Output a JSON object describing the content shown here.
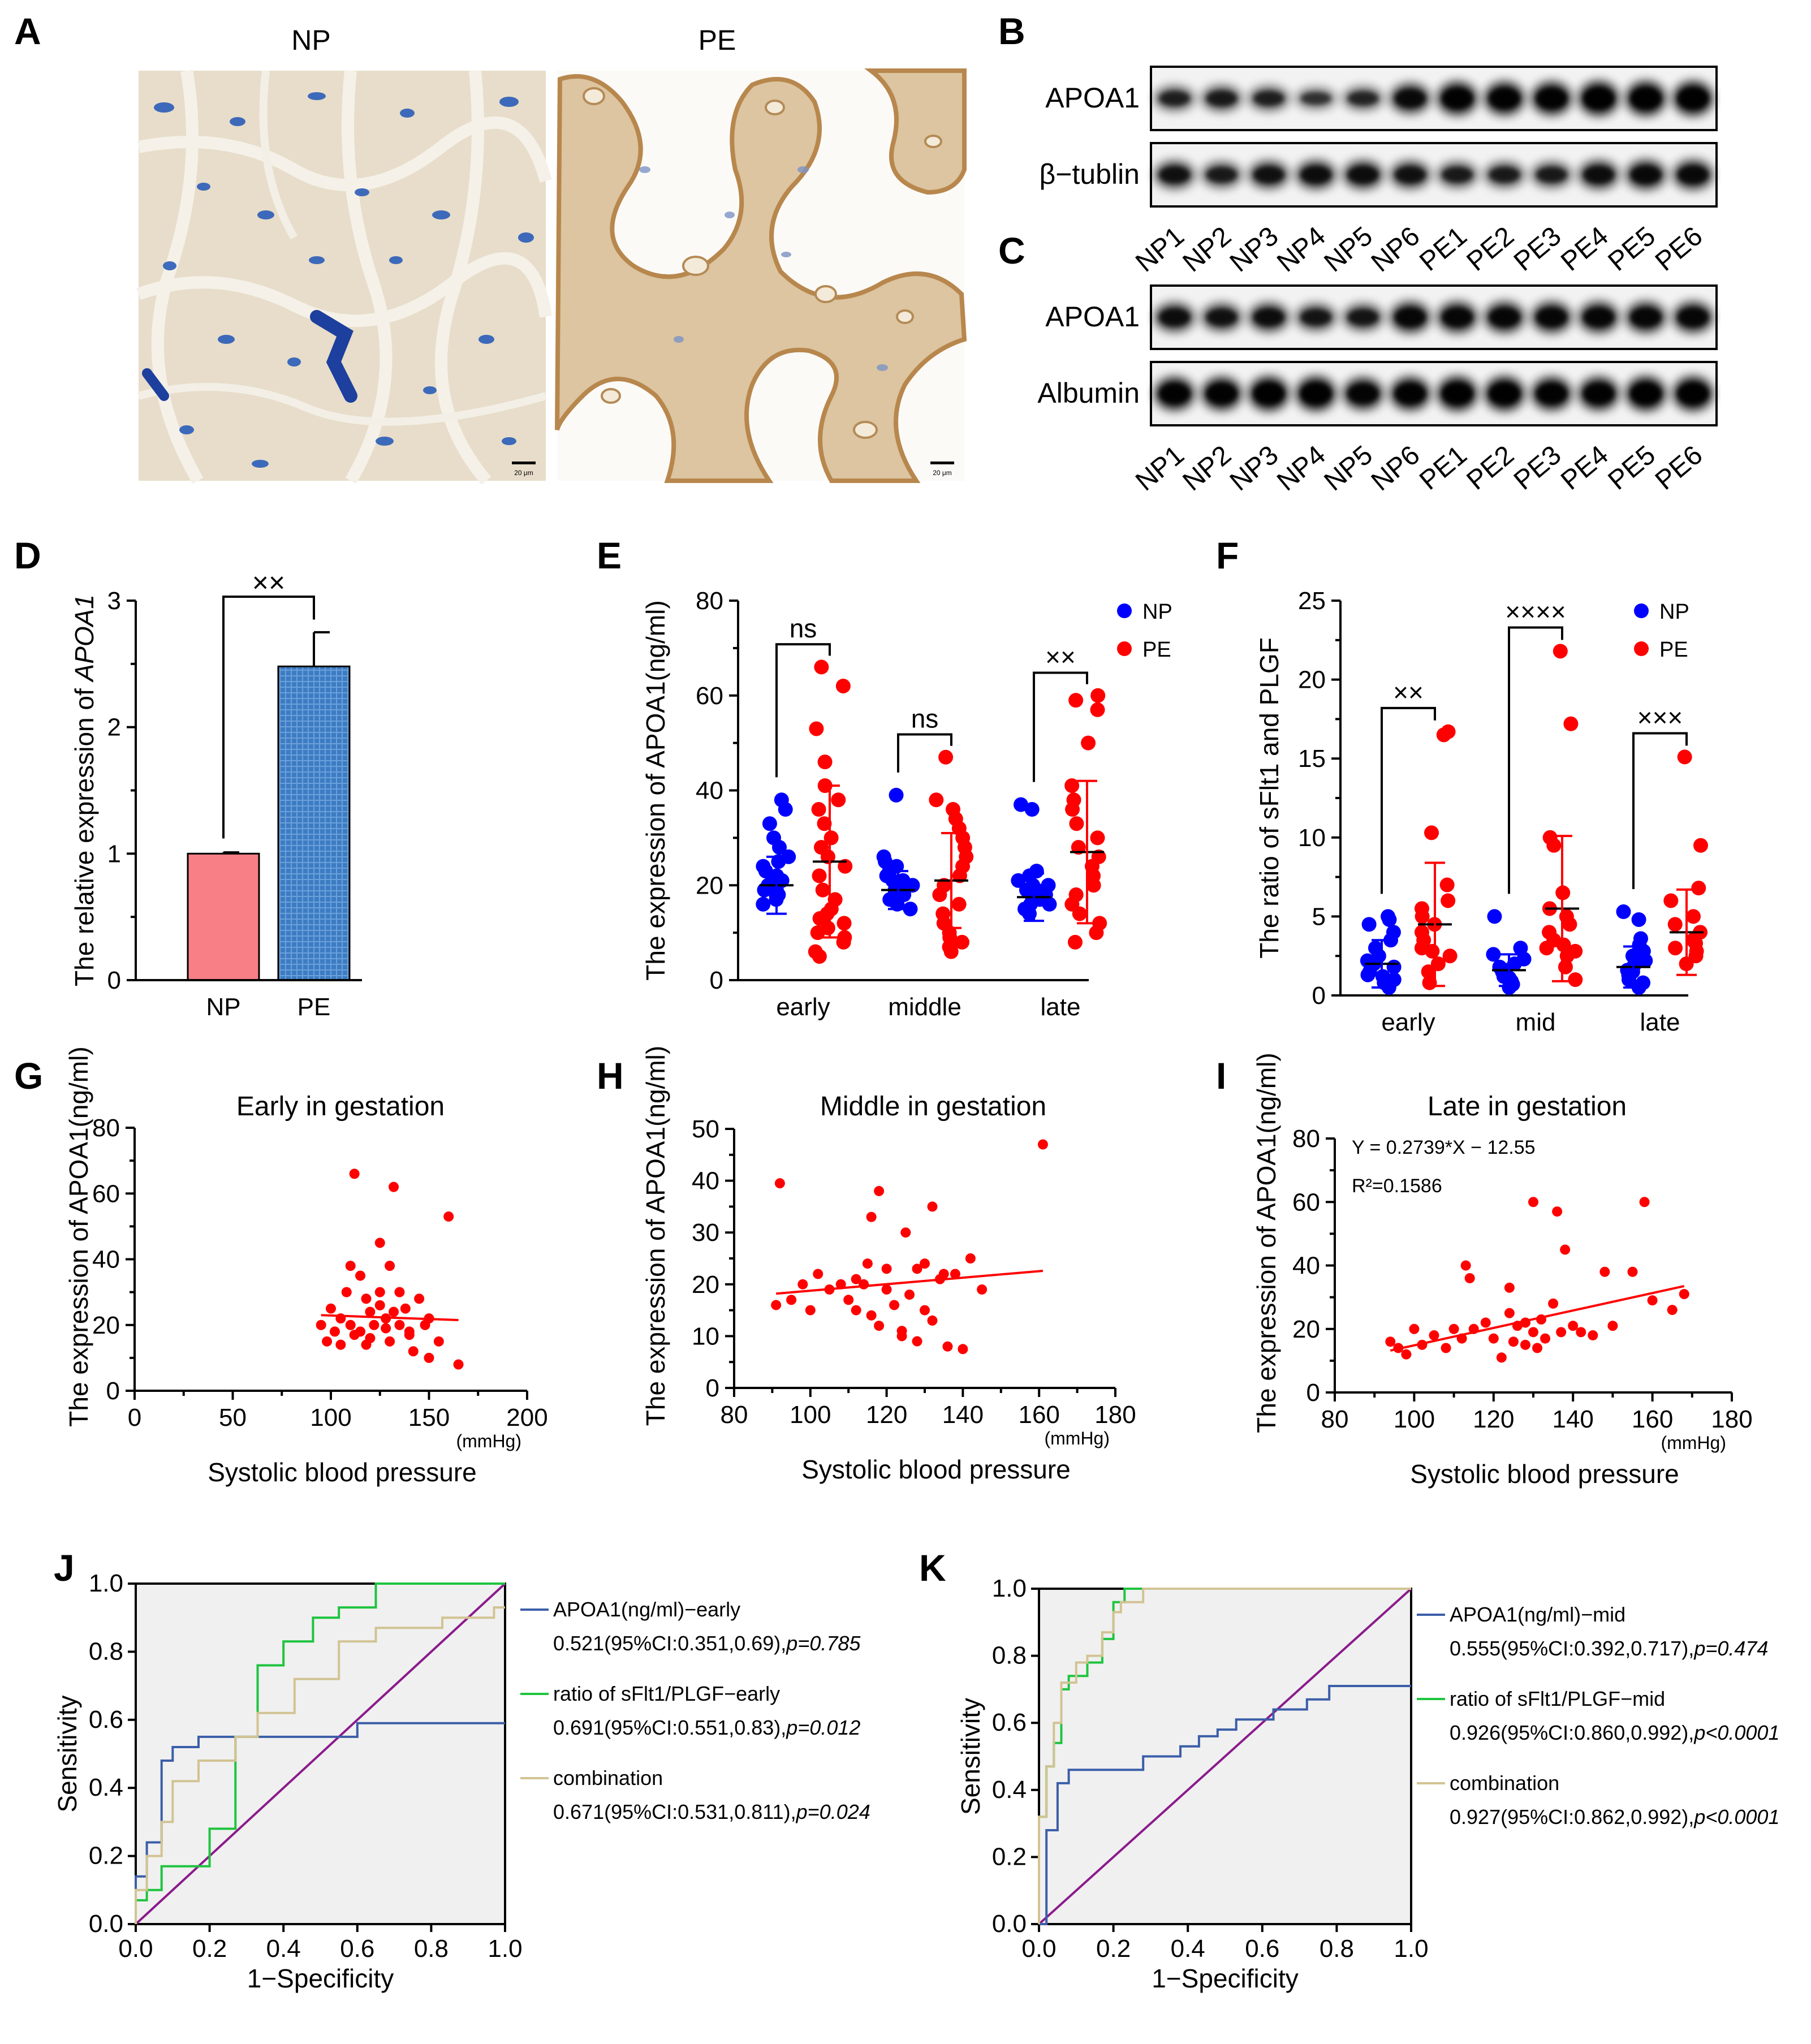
{
  "panel_letters": {
    "A": "A",
    "B": "B",
    "C": "C",
    "D": "D",
    "E": "E",
    "F": "F",
    "G": "G",
    "H": "H",
    "I": "I",
    "J": "J",
    "K": "K"
  },
  "panel_a": {
    "left_title": "NP",
    "right_title": "PE",
    "scale_bar": "20 μm"
  },
  "blots": {
    "b_rows": [
      "APOA1",
      "β−tublin"
    ],
    "c_rows": [
      "APOA1",
      "Albumin"
    ],
    "lanes": [
      "NP1",
      "NP2",
      "NP3",
      "NP4",
      "NP5",
      "NP6",
      "PE1",
      "PE2",
      "PE3",
      "PE4",
      "PE5",
      "PE6"
    ],
    "b_apoa1_intensity": [
      0.55,
      0.6,
      0.55,
      0.4,
      0.5,
      0.8,
      0.95,
      0.95,
      0.95,
      1.0,
      1.0,
      1.0
    ],
    "b_tubulin_intensity": [
      0.7,
      0.6,
      0.7,
      0.75,
      0.75,
      0.7,
      0.6,
      0.6,
      0.6,
      0.75,
      0.8,
      0.8
    ],
    "c_apoa1_intensity": [
      0.75,
      0.7,
      0.75,
      0.65,
      0.65,
      0.85,
      0.85,
      0.85,
      0.85,
      0.85,
      0.85,
      0.85
    ],
    "c_albumin_intensity": [
      0.95,
      0.95,
      1.0,
      1.0,
      0.9,
      0.95,
      1.0,
      1.0,
      0.95,
      0.95,
      1.0,
      1.0
    ]
  },
  "chart_data": [
    {
      "id": "D",
      "type": "bar",
      "title": "",
      "ylabel_prefix": "The relative expression of ",
      "ylabel_gene": "APOA1",
      "categories": [
        "NP",
        "PE"
      ],
      "values": [
        1.0,
        2.48
      ],
      "errors": [
        0.01,
        0.27
      ],
      "colors": [
        "#f77f85",
        "#3d7cc2"
      ],
      "ylim": [
        0,
        3
      ],
      "yticks": [
        "0",
        "1",
        "2",
        "3"
      ],
      "significance": "××"
    },
    {
      "id": "E",
      "type": "scatter",
      "ylabel": "The expression of APOA1(ng/ml)",
      "categories": [
        "early",
        "middle",
        "late"
      ],
      "ylim": [
        0,
        80
      ],
      "yticks": [
        "0",
        "20",
        "40",
        "60",
        "80"
      ],
      "legend": [
        "NP",
        "PE"
      ],
      "colors": [
        "#0000ff",
        "#ff0000"
      ],
      "significance": [
        "ns",
        "ns",
        "××"
      ],
      "groups": [
        {
          "np": [
            17,
            18,
            19,
            20,
            21,
            22,
            24,
            26,
            28,
            30,
            33,
            36,
            38,
            16,
            19,
            20,
            21,
            23,
            25,
            18
          ],
          "np_mean": 20,
          "np_sd": 6,
          "pe": [
            5,
            6,
            8,
            9,
            10,
            11,
            12,
            13,
            14,
            15,
            17,
            19,
            22,
            24,
            26,
            28,
            30,
            33,
            36,
            38,
            41,
            46,
            53,
            62,
            66
          ],
          "pe_mean": 25,
          "pe_sd": 16
        },
        {
          "np": [
            15,
            16,
            17,
            18,
            19,
            20,
            21,
            22,
            23,
            24,
            25,
            26,
            17,
            18,
            19,
            20,
            21,
            39
          ],
          "np_mean": 19,
          "np_sd": 4,
          "pe": [
            6,
            7,
            8,
            9,
            10,
            12,
            14,
            16,
            18,
            20,
            22,
            24,
            26,
            28,
            30,
            32,
            34,
            36,
            38,
            47
          ],
          "pe_mean": 21,
          "pe_sd": 10
        },
        {
          "np": [
            14,
            15,
            16,
            17,
            18,
            19,
            20,
            21,
            22,
            23,
            36,
            37,
            16,
            17,
            18,
            19,
            20
          ],
          "np_mean": 17.5,
          "np_sd": 5,
          "pe": [
            8,
            10,
            12,
            14,
            16,
            18,
            20,
            22,
            24,
            26,
            28,
            30,
            33,
            36,
            38,
            41,
            50,
            57,
            60,
            59
          ],
          "pe_mean": 27,
          "pe_sd": 15
        }
      ]
    },
    {
      "id": "F",
      "type": "scatter",
      "ylabel": "The ratio of sFlt1 and PLGF",
      "categories": [
        "early",
        "mid",
        "late"
      ],
      "ylim": [
        0,
        25
      ],
      "yticks": [
        "0",
        "5",
        "10",
        "15",
        "20",
        "25"
      ],
      "legend": [
        "NP",
        "PE"
      ],
      "colors": [
        "#0000ff",
        "#ff0000"
      ],
      "significance": [
        "××",
        "××××",
        "×××"
      ],
      "groups": [
        {
          "np": [
            0.5,
            0.8,
            1.0,
            1.2,
            1.5,
            1.8,
            2.0,
            2.2,
            2.5,
            3.0,
            3.5,
            4.0,
            4.5,
            4.8,
            5.0,
            1.3
          ],
          "np_mean": 2.0,
          "np_sd": 1.5,
          "pe": [
            0.8,
            1.5,
            2.0,
            2.5,
            3.0,
            3.5,
            4.0,
            4.5,
            5.0,
            5.5,
            6.0,
            7.0,
            10.3,
            16.5,
            16.7,
            2.8
          ],
          "pe_mean": 4.5,
          "pe_sd": 3.9
        },
        {
          "np": [
            0.5,
            0.7,
            0.9,
            1.1,
            1.3,
            1.5,
            1.8,
            2.0,
            2.3,
            2.6,
            3.0,
            5.0,
            1.2,
            1.6
          ],
          "np_mean": 1.6,
          "np_sd": 1.0,
          "pe": [
            1.0,
            1.8,
            2.5,
            3.0,
            3.5,
            4.0,
            4.5,
            5.0,
            5.5,
            6.5,
            9.5,
            10.0,
            17.2,
            21.8,
            3.2,
            2.8
          ],
          "pe_mean": 5.5,
          "pe_sd": 4.6
        },
        {
          "np": [
            0.5,
            0.8,
            1.0,
            1.3,
            1.6,
            1.9,
            2.2,
            2.5,
            2.8,
            3.2,
            3.6,
            4.8,
            5.3,
            1.5
          ],
          "np_mean": 1.8,
          "np_sd": 1.3,
          "pe": [
            2.0,
            2.5,
            3.0,
            3.5,
            4.0,
            4.5,
            5.0,
            6.0,
            6.8,
            9.5,
            15.1,
            3.3,
            2.8
          ],
          "pe_mean": 4.0,
          "pe_sd": 2.7
        }
      ]
    },
    {
      "id": "G",
      "type": "scatter",
      "title": "Early in gestation",
      "xlabel": "Systolic blood pressure",
      "xunit": "(mmHg)",
      "ylabel": "The expression of APOA1(ng/ml)",
      "xlim": [
        0,
        200
      ],
      "ylim": [
        0,
        80
      ],
      "xticks": [
        "0",
        "50",
        "100",
        "150",
        "200"
      ],
      "yticks": [
        "0",
        "20",
        "40",
        "60",
        "80"
      ],
      "x": [
        95,
        98,
        100,
        102,
        105,
        108,
        110,
        110,
        112,
        115,
        115,
        118,
        120,
        120,
        122,
        125,
        125,
        128,
        130,
        130,
        132,
        135,
        135,
        138,
        140,
        142,
        145,
        148,
        150,
        155,
        160,
        165,
        112,
        128,
        132,
        118,
        125,
        140,
        150,
        105
      ],
      "y": [
        20,
        15,
        25,
        18,
        22,
        30,
        38,
        20,
        66,
        18,
        35,
        28,
        24,
        16,
        20,
        45,
        30,
        22,
        15,
        38,
        62,
        30,
        20,
        25,
        18,
        12,
        28,
        20,
        10,
        15,
        53,
        8,
        17,
        19,
        24,
        14,
        26,
        17,
        22,
        14
      ],
      "fit": [
        [
          95,
          23
        ],
        [
          165,
          21.5
        ]
      ]
    },
    {
      "id": "H",
      "type": "scatter",
      "title": "Middle in gestation",
      "xlabel": "Systolic blood pressure",
      "xunit": "(mmHg)",
      "ylabel": "The expression of APOA1(ng/ml)",
      "xlim": [
        80,
        180
      ],
      "ylim": [
        0,
        50
      ],
      "xticks": [
        "80",
        "100",
        "120",
        "140",
        "160",
        "180"
      ],
      "yticks": [
        "0",
        "10",
        "20",
        "30",
        "40",
        "50"
      ],
      "x": [
        91,
        92,
        95,
        98,
        100,
        102,
        105,
        108,
        110,
        112,
        112,
        114,
        115,
        116,
        118,
        118,
        120,
        120,
        122,
        124,
        125,
        126,
        128,
        128,
        130,
        130,
        132,
        132,
        134,
        135,
        136,
        138,
        140,
        142,
        145,
        161,
        116,
        124
      ],
      "y": [
        16,
        39.5,
        17,
        20,
        15,
        22,
        19,
        20,
        17,
        21,
        15,
        20,
        24,
        14,
        12,
        38,
        23,
        19,
        16,
        10,
        30,
        18,
        23,
        9,
        24,
        15,
        35,
        13,
        21,
        22,
        8,
        22,
        7.5,
        25,
        19,
        47,
        33,
        11
      ],
      "fit": [
        [
          91,
          18.2
        ],
        [
          161,
          22.6
        ]
      ]
    },
    {
      "id": "I",
      "type": "scatter",
      "title": "Late in gestation",
      "xlabel": "Systolic blood pressure",
      "xunit": "(mmHg)",
      "ylabel": "The expression of APOA1(ng/ml)",
      "xlim": [
        80,
        180
      ],
      "ylim": [
        0,
        80
      ],
      "xticks": [
        "80",
        "100",
        "120",
        "140",
        "160",
        "180"
      ],
      "yticks": [
        "0",
        "20",
        "40",
        "60",
        "80"
      ],
      "equation": "Y = 0.2739*X − 12.55",
      "r2": "R²=0.1586",
      "x": [
        94,
        96,
        98,
        100,
        102,
        105,
        108,
        110,
        112,
        113,
        115,
        118,
        120,
        122,
        124,
        125,
        126,
        128,
        128,
        130,
        130,
        131,
        132,
        133,
        135,
        136,
        137,
        138,
        140,
        142,
        145,
        148,
        150,
        155,
        158,
        160,
        165,
        168,
        114,
        124
      ],
      "y": [
        16,
        14,
        12,
        20,
        15,
        18,
        14,
        20,
        17,
        40,
        20,
        22,
        17,
        11,
        25,
        16,
        21,
        15,
        22,
        60,
        19,
        14,
        23,
        17,
        28,
        57,
        19,
        45,
        21,
        19,
        18,
        38,
        21,
        38,
        60,
        29,
        26,
        31,
        36,
        33
      ],
      "fit": [
        [
          94,
          13.2
        ],
        [
          168,
          33.5
        ]
      ]
    },
    {
      "id": "J",
      "type": "line",
      "xlabel": "1−Specificity",
      "ylabel": "Sensitivity",
      "xlim": [
        0,
        1
      ],
      "ylim": [
        0,
        1
      ],
      "xticks": [
        "0.0",
        "0.2",
        "0.4",
        "0.6",
        "0.8",
        "1.0"
      ],
      "yticks": [
        "0.0",
        "0.2",
        "0.4",
        "0.6",
        "0.8",
        "1.0"
      ],
      "series": [
        {
          "name": "APOA1(ng/ml)−early",
          "stats": "0.521(95%CI:0.351,0.69),",
          "p": "p=0.785",
          "color": "#3b5ea8",
          "x": [
            0,
            0,
            0.03,
            0.03,
            0.07,
            0.07,
            0.1,
            0.1,
            0.17,
            0.17,
            0.25,
            0.25,
            0.6,
            0.6,
            1.0
          ],
          "y": [
            0,
            0.14,
            0.14,
            0.24,
            0.24,
            0.48,
            0.48,
            0.52,
            0.52,
            0.55,
            0.55,
            0.55,
            0.55,
            0.59,
            0.59
          ]
        },
        {
          "name": "ratio of sFlt1/PLGF−early",
          "stats": "0.691(95%CI:0.551,0.83),",
          "p": "p=0.012",
          "color": "#1ec43f",
          "x": [
            0,
            0,
            0.03,
            0.03,
            0.07,
            0.07,
            0.2,
            0.2,
            0.27,
            0.27,
            0.33,
            0.33,
            0.4,
            0.4,
            0.48,
            0.48,
            0.55,
            0.55,
            0.65,
            0.65,
            0.8,
            0.8,
            1.0
          ],
          "y": [
            0,
            0.07,
            0.07,
            0.1,
            0.1,
            0.17,
            0.17,
            0.28,
            0.28,
            0.55,
            0.55,
            0.76,
            0.76,
            0.83,
            0.83,
            0.9,
            0.9,
            0.93,
            0.93,
            1.0,
            1.0,
            1.0,
            1.0
          ]
        },
        {
          "name": "combination",
          "stats": "0.671(95%CI:0.531,0.811),",
          "p": "p=0.024",
          "color": "#d2c393",
          "x": [
            0,
            0,
            0.03,
            0.03,
            0.07,
            0.07,
            0.1,
            0.1,
            0.17,
            0.17,
            0.27,
            0.27,
            0.33,
            0.33,
            0.43,
            0.43,
            0.55,
            0.55,
            0.65,
            0.65,
            0.83,
            0.83,
            0.97,
            0.97,
            1.0
          ],
          "y": [
            0,
            0.1,
            0.1,
            0.2,
            0.2,
            0.3,
            0.3,
            0.42,
            0.42,
            0.48,
            0.48,
            0.55,
            0.55,
            0.62,
            0.62,
            0.72,
            0.72,
            0.83,
            0.83,
            0.87,
            0.87,
            0.9,
            0.9,
            0.93,
            0.93
          ]
        }
      ]
    },
    {
      "id": "K",
      "type": "line",
      "xlabel": "1−Specificity",
      "ylabel": "Sensitivity",
      "xlim": [
        0,
        1
      ],
      "ylim": [
        0,
        1
      ],
      "xticks": [
        "0.0",
        "0.2",
        "0.4",
        "0.6",
        "0.8",
        "1.0"
      ],
      "yticks": [
        "0.0",
        "0.2",
        "0.4",
        "0.6",
        "0.8",
        "1.0"
      ],
      "series": [
        {
          "name": "APOA1(ng/ml)−mid",
          "stats": "0.555(95%CI:0.392,0.717),",
          "p": "p=0.474",
          "color": "#3b5ea8",
          "x": [
            0,
            0.02,
            0.02,
            0.05,
            0.05,
            0.08,
            0.08,
            0.28,
            0.28,
            0.38,
            0.38,
            0.43,
            0.43,
            0.48,
            0.48,
            0.53,
            0.53,
            0.63,
            0.63,
            0.72,
            0.72,
            0.78,
            0.78,
            1.0
          ],
          "y": [
            0,
            0,
            0.28,
            0.28,
            0.42,
            0.42,
            0.46,
            0.46,
            0.5,
            0.5,
            0.53,
            0.53,
            0.56,
            0.56,
            0.58,
            0.58,
            0.61,
            0.61,
            0.64,
            0.64,
            0.67,
            0.67,
            0.71,
            0.71
          ]
        },
        {
          "name": "ratio of sFlt1/PLGF−mid",
          "stats": "0.926(95%CI:0.860,0.992),",
          "p": "p<0.0001",
          "color": "#1ec43f",
          "x": [
            0,
            0,
            0.02,
            0.02,
            0.04,
            0.04,
            0.06,
            0.06,
            0.08,
            0.08,
            0.13,
            0.13,
            0.17,
            0.17,
            0.2,
            0.2,
            0.23,
            0.23,
            1.0
          ],
          "y": [
            0,
            0.32,
            0.32,
            0.47,
            0.47,
            0.54,
            0.54,
            0.7,
            0.7,
            0.74,
            0.74,
            0.78,
            0.78,
            0.85,
            0.85,
            0.96,
            0.96,
            1.0,
            1.0
          ]
        },
        {
          "name": "combination",
          "stats": "0.927(95%CI:0.862,0.992),",
          "p": "p<0.0001",
          "color": "#d2c393",
          "x": [
            0,
            0,
            0.02,
            0.02,
            0.04,
            0.04,
            0.06,
            0.06,
            0.1,
            0.1,
            0.13,
            0.13,
            0.17,
            0.17,
            0.2,
            0.2,
            0.22,
            0.22,
            0.28,
            0.28,
            1.0
          ],
          "y": [
            0,
            0.32,
            0.32,
            0.47,
            0.47,
            0.6,
            0.6,
            0.72,
            0.72,
            0.78,
            0.78,
            0.8,
            0.8,
            0.87,
            0.87,
            0.93,
            0.93,
            0.96,
            0.96,
            1.0,
            1.0
          ]
        }
      ]
    }
  ]
}
